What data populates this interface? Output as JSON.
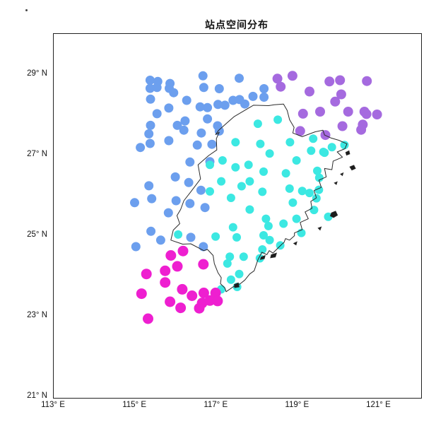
{
  "title": "站点空间分布",
  "chart_data": {
    "type": "scatter",
    "title": "站点空间分布",
    "xlabel": "",
    "ylabel": "",
    "xlim": [
      113,
      122
    ],
    "ylim": [
      21,
      30
    ],
    "grid": false,
    "legend_position": "none",
    "x_ticks": [
      {
        "value": 113,
        "label": "113° E"
      },
      {
        "value": 115,
        "label": "115° E"
      },
      {
        "value": 117,
        "label": "117° E"
      },
      {
        "value": 119,
        "label": "119° E"
      },
      {
        "value": 121,
        "label": "121° E"
      }
    ],
    "y_ticks": [
      {
        "value": 21,
        "label": "21° N"
      },
      {
        "value": 23,
        "label": "23° N"
      },
      {
        "value": 25,
        "label": "25° N"
      },
      {
        "value": 27,
        "label": "27° N"
      },
      {
        "value": 29,
        "label": "29° N"
      }
    ],
    "series": [
      {
        "name": "cluster-northwest-blue",
        "color": "#6C9FEE",
        "marker": "circle",
        "radius": 6.5,
        "points": [
          [
            115.37,
            28.85
          ],
          [
            115.56,
            28.82
          ],
          [
            115.37,
            28.65
          ],
          [
            115.54,
            28.67
          ],
          [
            115.86,
            28.77
          ],
          [
            115.84,
            28.65
          ],
          [
            115.95,
            28.54
          ],
          [
            116.67,
            28.96
          ],
          [
            116.69,
            28.67
          ],
          [
            117.07,
            28.64
          ],
          [
            117.56,
            28.9
          ],
          [
            115.38,
            28.38
          ],
          [
            116.27,
            28.35
          ],
          [
            116.6,
            28.19
          ],
          [
            116.78,
            28.17
          ],
          [
            117.04,
            28.25
          ],
          [
            117.21,
            28.23
          ],
          [
            117.41,
            28.35
          ],
          [
            117.57,
            28.37
          ],
          [
            117.7,
            28.26
          ],
          [
            117.9,
            28.45
          ],
          [
            118.17,
            28.64
          ],
          [
            118.17,
            28.43
          ],
          [
            115.83,
            28.16
          ],
          [
            115.54,
            28.02
          ],
          [
            116.78,
            27.89
          ],
          [
            116.23,
            27.84
          ],
          [
            116.04,
            27.73
          ],
          [
            115.38,
            27.73
          ],
          [
            115.34,
            27.52
          ],
          [
            116.2,
            27.61
          ],
          [
            117.03,
            27.72
          ],
          [
            117.07,
            27.59
          ],
          [
            116.63,
            27.54
          ],
          [
            115.37,
            27.28
          ],
          [
            115.83,
            27.35
          ],
          [
            115.13,
            27.18
          ],
          [
            116.53,
            27.24
          ],
          [
            116.89,
            27.26
          ],
          [
            116.35,
            26.82
          ],
          [
            116.84,
            26.83
          ],
          [
            116.32,
            26.31
          ],
          [
            116.62,
            26.12
          ],
          [
            115.99,
            26.45
          ],
          [
            115.34,
            26.23
          ],
          [
            114.99,
            25.81
          ],
          [
            115.41,
            25.91
          ],
          [
            116.01,
            25.86
          ],
          [
            116.35,
            25.79
          ],
          [
            116.72,
            25.69
          ],
          [
            115.82,
            25.56
          ],
          [
            115.39,
            25.1
          ],
          [
            115.63,
            24.88
          ],
          [
            115.02,
            24.72
          ],
          [
            116.37,
            24.95
          ],
          [
            116.68,
            24.72
          ]
        ]
      },
      {
        "name": "cluster-central-cyan",
        "color": "#3CE8E2",
        "marker": "circle",
        "radius": 6,
        "points": [
          [
            117.47,
            27.31
          ],
          [
            117.15,
            26.86
          ],
          [
            118.02,
            27.77
          ],
          [
            118.08,
            27.27
          ],
          [
            118.31,
            27.03
          ],
          [
            118.51,
            27.87
          ],
          [
            118.81,
            27.31
          ],
          [
            119.38,
            27.4
          ],
          [
            119.66,
            27.05
          ],
          [
            119.33,
            27.1
          ],
          [
            119.84,
            27.19
          ],
          [
            120.15,
            27.24
          ],
          [
            119.63,
            27.07
          ],
          [
            116.84,
            26.75
          ],
          [
            117.47,
            26.69
          ],
          [
            117.79,
            26.75
          ],
          [
            118.16,
            26.58
          ],
          [
            118.71,
            26.54
          ],
          [
            118.97,
            26.86
          ],
          [
            119.48,
            26.6
          ],
          [
            119.53,
            26.43
          ],
          [
            117.12,
            26.34
          ],
          [
            117.62,
            26.22
          ],
          [
            117.82,
            26.34
          ],
          [
            118.13,
            26.08
          ],
          [
            118.8,
            26.16
          ],
          [
            119.11,
            26.1
          ],
          [
            116.84,
            26.09
          ],
          [
            117.36,
            25.93
          ],
          [
            118.88,
            25.81
          ],
          [
            119.52,
            26.13
          ],
          [
            119.29,
            26.05
          ],
          [
            119.46,
            25.92
          ],
          [
            117.82,
            25.64
          ],
          [
            118.22,
            25.41
          ],
          [
            118.28,
            25.23
          ],
          [
            118.65,
            25.29
          ],
          [
            118.97,
            25.41
          ],
          [
            119.4,
            25.63
          ],
          [
            119.75,
            25.46
          ],
          [
            119.09,
            25.06
          ],
          [
            117.41,
            25.2
          ],
          [
            116.98,
            24.97
          ],
          [
            117.5,
            24.95
          ],
          [
            118.16,
            25.0
          ],
          [
            118.31,
            24.88
          ],
          [
            118.57,
            24.75
          ],
          [
            118.13,
            24.65
          ],
          [
            117.67,
            24.47
          ],
          [
            117.33,
            24.47
          ],
          [
            117.27,
            24.3
          ],
          [
            118.07,
            24.43
          ],
          [
            117.56,
            24.04
          ],
          [
            117.36,
            23.9
          ],
          [
            117.51,
            23.72
          ],
          [
            117.12,
            23.66
          ],
          [
            116.06,
            25.02
          ]
        ]
      },
      {
        "name": "cluster-southwest-magenta",
        "color": "#EE1FD0",
        "marker": "circle",
        "radius": 7.5,
        "points": [
          [
            115.88,
            24.5
          ],
          [
            116.18,
            24.61
          ],
          [
            116.04,
            24.23
          ],
          [
            116.68,
            24.28
          ],
          [
            115.28,
            24.04
          ],
          [
            115.74,
            24.12
          ],
          [
            115.74,
            23.83
          ],
          [
            115.16,
            23.55
          ],
          [
            116.16,
            23.66
          ],
          [
            115.86,
            23.35
          ],
          [
            116.12,
            23.2
          ],
          [
            116.4,
            23.5
          ],
          [
            116.69,
            23.57
          ],
          [
            116.98,
            23.57
          ],
          [
            116.65,
            23.32
          ],
          [
            116.84,
            23.38
          ],
          [
            117.03,
            23.37
          ],
          [
            116.58,
            23.19
          ],
          [
            115.32,
            22.93
          ]
        ]
      },
      {
        "name": "cluster-northeast-purple",
        "color": "#A56ADF",
        "marker": "circle",
        "radius": 7,
        "points": [
          [
            118.5,
            28.89
          ],
          [
            118.58,
            28.69
          ],
          [
            118.87,
            28.96
          ],
          [
            119.29,
            28.57
          ],
          [
            119.78,
            28.82
          ],
          [
            120.04,
            28.85
          ],
          [
            120.07,
            28.5
          ],
          [
            119.92,
            28.32
          ],
          [
            120.7,
            28.83
          ],
          [
            119.13,
            28.02
          ],
          [
            119.55,
            28.07
          ],
          [
            120.24,
            28.07
          ],
          [
            120.64,
            28.07
          ],
          [
            120.69,
            28.01
          ],
          [
            120.95,
            28.0
          ],
          [
            120.1,
            27.71
          ],
          [
            120.6,
            27.75
          ],
          [
            120.56,
            27.62
          ],
          [
            119.06,
            27.59
          ],
          [
            119.68,
            27.49
          ]
        ]
      }
    ],
    "map_outline": {
      "name": "fujian-province-boundary",
      "color": "#2b2b2b",
      "points": [
        [
          118.65,
          28.26
        ],
        [
          118.74,
          28.1
        ],
        [
          118.8,
          27.87
        ],
        [
          118.91,
          27.68
        ],
        [
          118.88,
          27.54
        ],
        [
          119.11,
          27.45
        ],
        [
          119.43,
          27.57
        ],
        [
          119.62,
          27.61
        ],
        [
          119.66,
          27.49
        ],
        [
          119.81,
          27.42
        ],
        [
          120.01,
          27.36
        ],
        [
          120.21,
          27.27
        ],
        [
          120.16,
          27.15
        ],
        [
          119.97,
          27.07
        ],
        [
          120.1,
          26.94
        ],
        [
          119.87,
          26.84
        ],
        [
          119.84,
          26.63
        ],
        [
          119.66,
          26.66
        ],
        [
          119.7,
          26.45
        ],
        [
          119.52,
          26.37
        ],
        [
          119.58,
          26.19
        ],
        [
          119.4,
          26.11
        ],
        [
          119.46,
          25.93
        ],
        [
          119.32,
          25.84
        ],
        [
          119.35,
          25.67
        ],
        [
          119.18,
          25.58
        ],
        [
          119.26,
          25.41
        ],
        [
          119.06,
          25.32
        ],
        [
          119.11,
          25.14
        ],
        [
          118.92,
          25.06
        ],
        [
          118.92,
          24.99
        ],
        [
          118.8,
          24.88
        ],
        [
          118.7,
          24.92
        ],
        [
          118.66,
          24.82
        ],
        [
          118.62,
          24.79
        ],
        [
          118.39,
          24.56
        ],
        [
          118.3,
          24.62
        ],
        [
          118.24,
          24.52
        ],
        [
          118.12,
          24.58
        ],
        [
          118.05,
          24.45
        ],
        [
          118.02,
          24.39
        ],
        [
          117.93,
          24.12
        ],
        [
          117.82,
          24.04
        ],
        [
          117.7,
          23.89
        ],
        [
          117.59,
          23.8
        ],
        [
          117.41,
          23.72
        ],
        [
          117.24,
          23.6
        ],
        [
          117.21,
          23.69
        ],
        [
          117.1,
          23.8
        ],
        [
          117.12,
          23.95
        ],
        [
          117.04,
          24.07
        ],
        [
          116.95,
          24.3
        ],
        [
          116.92,
          24.5
        ],
        [
          116.78,
          24.65
        ],
        [
          116.69,
          24.62
        ],
        [
          116.37,
          24.79
        ],
        [
          116.17,
          24.78
        ],
        [
          115.88,
          24.88
        ],
        [
          115.94,
          25.13
        ],
        [
          116.1,
          25.29
        ],
        [
          116.03,
          25.49
        ],
        [
          116.12,
          25.64
        ],
        [
          116.2,
          25.86
        ],
        [
          116.37,
          26.08
        ],
        [
          116.61,
          26.4
        ],
        [
          116.55,
          26.75
        ],
        [
          116.81,
          26.98
        ],
        [
          117.01,
          27.12
        ],
        [
          117.0,
          27.4
        ],
        [
          117.07,
          27.56
        ],
        [
          116.98,
          27.5
        ],
        [
          117.05,
          27.6
        ],
        [
          117.27,
          27.8
        ],
        [
          117.44,
          27.95
        ],
        [
          117.91,
          28.23
        ],
        [
          118.28,
          28.22
        ],
        [
          118.42,
          28.24
        ],
        [
          118.65,
          28.26
        ]
      ]
    },
    "islands": [
      [
        [
          120.28,
          26.7
        ],
        [
          120.38,
          26.74
        ],
        [
          120.42,
          26.66
        ],
        [
          120.33,
          26.62
        ]
      ],
      [
        [
          120.05,
          26.52
        ],
        [
          120.12,
          26.55
        ],
        [
          120.1,
          26.48
        ]
      ],
      [
        [
          119.9,
          26.3
        ],
        [
          119.97,
          26.33
        ],
        [
          119.95,
          26.26
        ]
      ],
      [
        [
          120.18,
          27.06
        ],
        [
          120.26,
          27.1
        ],
        [
          120.28,
          27.02
        ],
        [
          120.2,
          26.99
        ]
      ],
      [
        [
          119.83,
          25.56
        ],
        [
          119.93,
          25.6
        ],
        [
          119.98,
          25.5
        ],
        [
          119.88,
          25.44
        ],
        [
          119.8,
          25.48
        ]
      ],
      [
        [
          119.5,
          25.18
        ],
        [
          119.58,
          25.21
        ],
        [
          119.55,
          25.13
        ]
      ],
      [
        [
          118.9,
          24.8
        ],
        [
          118.98,
          24.84
        ],
        [
          118.96,
          24.76
        ]
      ],
      [
        [
          118.35,
          24.52
        ],
        [
          118.48,
          24.56
        ],
        [
          118.45,
          24.46
        ],
        [
          118.33,
          24.44
        ]
      ],
      [
        [
          118.1,
          24.46
        ],
        [
          118.2,
          24.5
        ],
        [
          118.18,
          24.42
        ],
        [
          118.08,
          24.4
        ]
      ],
      [
        [
          117.44,
          23.78
        ],
        [
          117.54,
          23.82
        ],
        [
          117.56,
          23.72
        ],
        [
          117.45,
          23.7
        ]
      ]
    ]
  }
}
